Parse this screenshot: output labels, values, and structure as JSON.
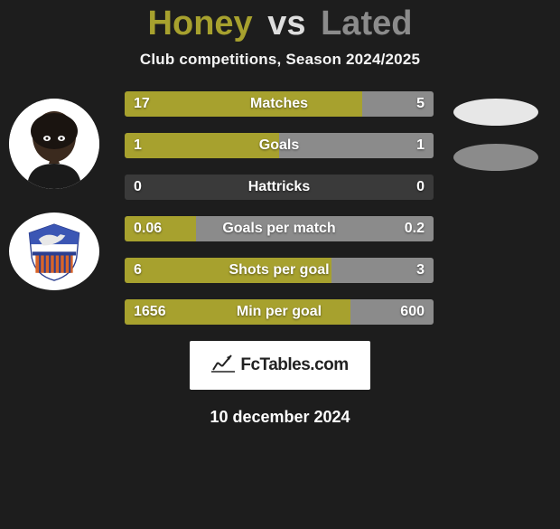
{
  "title": {
    "p1": "Honey",
    "vs": "vs",
    "p2": "Lated",
    "p1_color": "#a7a12e",
    "vs_color": "#dedede",
    "p2_color": "#8b8b8b"
  },
  "subtitle": "Club competitions, Season 2024/2025",
  "colors": {
    "left": "#a7a12e",
    "right": "#8b8b8b",
    "track": "#3a3a3a",
    "background": "#1d1d1d"
  },
  "ovals": {
    "top_color": "#e7e7e7",
    "bottom_color": "#8b8b8b"
  },
  "bars": [
    {
      "label": "Matches",
      "left_val": "17",
      "right_val": "5",
      "left_pct": 77,
      "right_pct": 23
    },
    {
      "label": "Goals",
      "left_val": "1",
      "right_val": "1",
      "left_pct": 50,
      "right_pct": 50
    },
    {
      "label": "Hattricks",
      "left_val": "0",
      "right_val": "0",
      "left_pct": 0,
      "right_pct": 0
    },
    {
      "label": "Goals per match",
      "left_val": "0.06",
      "right_val": "0.2",
      "left_pct": 23,
      "right_pct": 77
    },
    {
      "label": "Shots per goal",
      "left_val": "6",
      "right_val": "3",
      "left_pct": 67,
      "right_pct": 33
    },
    {
      "label": "Min per goal",
      "left_val": "1656",
      "right_val": "600",
      "left_pct": 73,
      "right_pct": 27
    }
  ],
  "footer": {
    "logo_text": "FcTables.com"
  },
  "date_text": "10 december 2024"
}
